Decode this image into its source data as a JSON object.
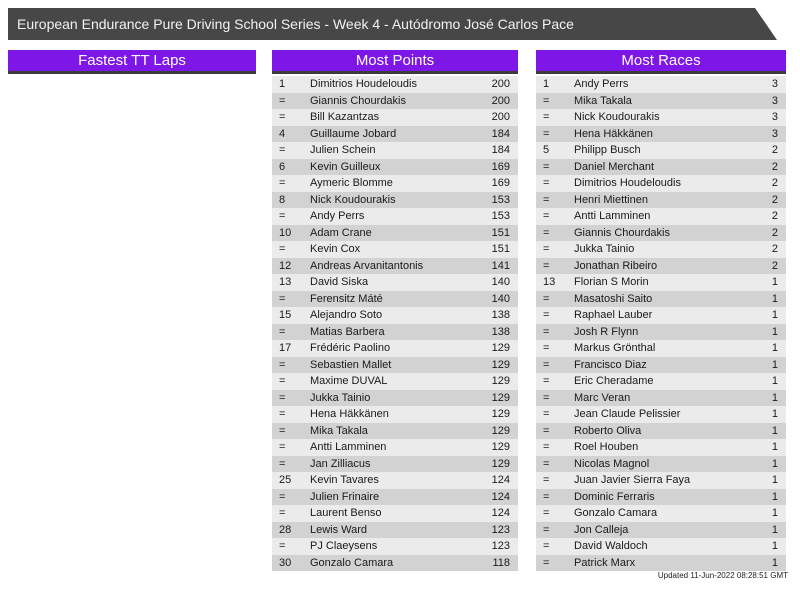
{
  "title_bar": {
    "title": "European Endurance Pure Driving School Series - Week 4 - Autódromo José Carlos Pace"
  },
  "panels": [
    {
      "id": "fastest-tt-laps",
      "header": "Fastest TT Laps",
      "rows": []
    },
    {
      "id": "most-points",
      "header": "Most Points",
      "rows": [
        {
          "rank": "1",
          "name": "Dimitrios Houdeloudis",
          "value": "200"
        },
        {
          "rank": "=",
          "name": "Giannis Chourdakis",
          "value": "200"
        },
        {
          "rank": "=",
          "name": "Bill Kazantzas",
          "value": "200"
        },
        {
          "rank": "4",
          "name": "Guillaume Jobard",
          "value": "184"
        },
        {
          "rank": "=",
          "name": "Julien Schein",
          "value": "184"
        },
        {
          "rank": "6",
          "name": "Kevin Guilleux",
          "value": "169"
        },
        {
          "rank": "=",
          "name": "Aymeric Blomme",
          "value": "169"
        },
        {
          "rank": "8",
          "name": "Nick Koudourakis",
          "value": "153"
        },
        {
          "rank": "=",
          "name": "Andy Perrs",
          "value": "153"
        },
        {
          "rank": "10",
          "name": "Adam Crane",
          "value": "151"
        },
        {
          "rank": "=",
          "name": "Kevin Cox",
          "value": "151"
        },
        {
          "rank": "12",
          "name": "Andreas Arvanitantonis",
          "value": "141"
        },
        {
          "rank": "13",
          "name": "David Siska",
          "value": "140"
        },
        {
          "rank": "=",
          "name": "Ferensitz Máté",
          "value": "140"
        },
        {
          "rank": "15",
          "name": "Alejandro Soto",
          "value": "138"
        },
        {
          "rank": "=",
          "name": "Matias Barbera",
          "value": "138"
        },
        {
          "rank": "17",
          "name": "Frédéric Paolino",
          "value": "129"
        },
        {
          "rank": "=",
          "name": "Sebastien Mallet",
          "value": "129"
        },
        {
          "rank": "=",
          "name": "Maxime DUVAL",
          "value": "129"
        },
        {
          "rank": "=",
          "name": "Jukka Tainio",
          "value": "129"
        },
        {
          "rank": "=",
          "name": "Hena Häkkänen",
          "value": "129"
        },
        {
          "rank": "=",
          "name": "Mika Takala",
          "value": "129"
        },
        {
          "rank": "=",
          "name": "Antti Lamminen",
          "value": "129"
        },
        {
          "rank": "=",
          "name": "Jan Zilliacus",
          "value": "129"
        },
        {
          "rank": "25",
          "name": "Kevin Tavares",
          "value": "124"
        },
        {
          "rank": "=",
          "name": "Julien Frinaire",
          "value": "124"
        },
        {
          "rank": "=",
          "name": "Laurent Benso",
          "value": "124"
        },
        {
          "rank": "28",
          "name": "Lewis Ward",
          "value": "123"
        },
        {
          "rank": "=",
          "name": "PJ Claeysens",
          "value": "123"
        },
        {
          "rank": "30",
          "name": "Gonzalo Camara",
          "value": "118"
        }
      ]
    },
    {
      "id": "most-races",
      "header": "Most Races",
      "rows": [
        {
          "rank": "1",
          "name": "Andy Perrs",
          "value": "3"
        },
        {
          "rank": "=",
          "name": "Mika Takala",
          "value": "3"
        },
        {
          "rank": "=",
          "name": "Nick Koudourakis",
          "value": "3"
        },
        {
          "rank": "=",
          "name": "Hena Häkkänen",
          "value": "3"
        },
        {
          "rank": "5",
          "name": "Philipp Busch",
          "value": "2"
        },
        {
          "rank": "=",
          "name": "Daniel Merchant",
          "value": "2"
        },
        {
          "rank": "=",
          "name": "Dimitrios Houdeloudis",
          "value": "2"
        },
        {
          "rank": "=",
          "name": "Henri Miettinen",
          "value": "2"
        },
        {
          "rank": "=",
          "name": "Antti Lamminen",
          "value": "2"
        },
        {
          "rank": "=",
          "name": "Giannis Chourdakis",
          "value": "2"
        },
        {
          "rank": "=",
          "name": "Jukka Tainio",
          "value": "2"
        },
        {
          "rank": "=",
          "name": "Jonathan Ribeiro",
          "value": "2"
        },
        {
          "rank": "13",
          "name": "Florian S Morin",
          "value": "1"
        },
        {
          "rank": "=",
          "name": "Masatoshi Saito",
          "value": "1"
        },
        {
          "rank": "=",
          "name": "Raphael Lauber",
          "value": "1"
        },
        {
          "rank": "=",
          "name": "Josh R Flynn",
          "value": "1"
        },
        {
          "rank": "=",
          "name": "Markus Grönthal",
          "value": "1"
        },
        {
          "rank": "=",
          "name": "Francisco Diaz",
          "value": "1"
        },
        {
          "rank": "=",
          "name": "Eric Cheradame",
          "value": "1"
        },
        {
          "rank": "=",
          "name": "Marc Veran",
          "value": "1"
        },
        {
          "rank": "=",
          "name": "Jean Claude Pelissier",
          "value": "1"
        },
        {
          "rank": "=",
          "name": "Roberto Oliva",
          "value": "1"
        },
        {
          "rank": "=",
          "name": "Roel Houben",
          "value": "1"
        },
        {
          "rank": "=",
          "name": "Nicolas Magnol",
          "value": "1"
        },
        {
          "rank": "=",
          "name": "Juan Javier Sierra Faya",
          "value": "1"
        },
        {
          "rank": "=",
          "name": "Dominic Ferraris",
          "value": "1"
        },
        {
          "rank": "=",
          "name": "Gonzalo Camara",
          "value": "1"
        },
        {
          "rank": "=",
          "name": "Jon Calleja",
          "value": "1"
        },
        {
          "rank": "=",
          "name": "David Waldoch",
          "value": "1"
        },
        {
          "rank": "=",
          "name": "Patrick Marx",
          "value": "1"
        }
      ]
    }
  ],
  "footer": {
    "updated": "Updated 11-Jun-2022 08:28:51 GMT"
  },
  "colors": {
    "accent_purple": "#7e16e8",
    "titlebar_gray": "#474747",
    "row_light": "#ebebeb",
    "row_dark": "#d2d2d2"
  }
}
